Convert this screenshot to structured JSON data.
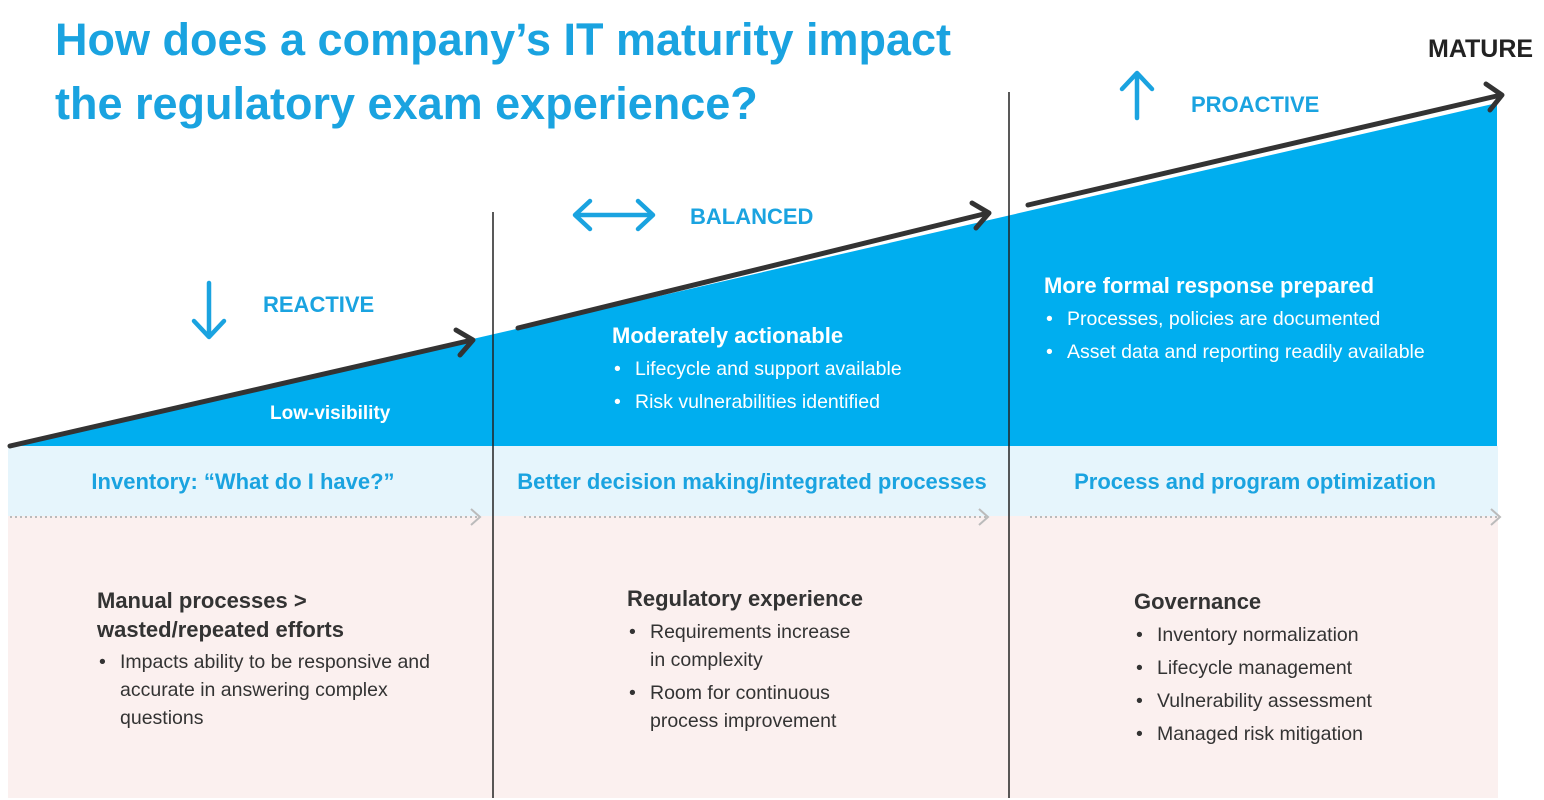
{
  "title": "How does a company’s IT maturity impact the regulatory exam experience?",
  "end_label": "MATURE",
  "colors": {
    "accent": "#00aeef",
    "title": "#1aa3e0",
    "band": "#e6f5fc",
    "lower": "#fbf0ef",
    "line": "#333333"
  },
  "stages": [
    {
      "label": "REACTIVE",
      "icon": "arrow-down-icon",
      "curve_label": "Low-visibility",
      "band": "Inventory: “What do I have?”",
      "head": "Manual processes > wasted/repeated efforts",
      "bullets": [
        "Impacts ability to be responsive and accurate in answering complex questions"
      ]
    },
    {
      "label": "BALANCED",
      "icon": "arrow-left-right-icon",
      "curve_label": "Moderately actionable",
      "curve_bullets": [
        "Lifecycle and support available",
        "Risk vulnerabilities  identified"
      ],
      "band": "Better decision making/integrated processes",
      "head": "Regulatory experience",
      "bullets": [
        "Requirements  increase in complexity",
        "Room for continuous process improvement"
      ]
    },
    {
      "label": "PROACTIVE",
      "icon": "arrow-up-icon",
      "curve_label": "More formal response prepared",
      "curve_bullets": [
        "Processes, policies are documented",
        "Asset data and reporting readily available"
      ],
      "band": "Process and program optimization",
      "head": "Governance",
      "bullets": [
        "Inventory normalization",
        "Lifecycle management",
        "Vulnerability  assessment",
        "Managed risk mitigation"
      ]
    }
  ]
}
